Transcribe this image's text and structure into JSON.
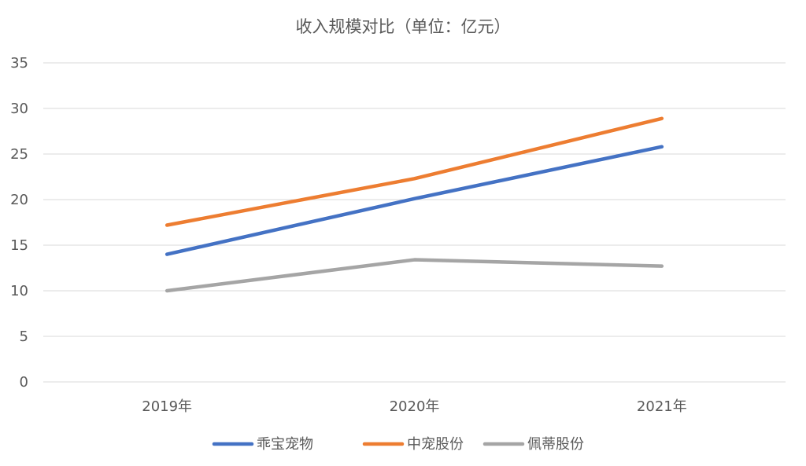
{
  "chart_data": {
    "type": "line",
    "title": "收入规模对比（单位：亿元）",
    "categories": [
      "2019年",
      "2020年",
      "2021年"
    ],
    "series": [
      {
        "name": "乖宝宠物",
        "color": "#4472C4",
        "values": [
          14.0,
          20.1,
          25.8
        ]
      },
      {
        "name": "中宠股份",
        "color": "#ED7D31",
        "values": [
          17.2,
          22.3,
          28.9
        ]
      },
      {
        "name": "佩蒂股份",
        "color": "#A5A5A5",
        "values": [
          10.0,
          13.4,
          12.7
        ]
      }
    ],
    "ylim": [
      0,
      35
    ],
    "yticks": [
      "0",
      "5",
      "10",
      "15",
      "20",
      "25",
      "30",
      "35"
    ],
    "grid": true,
    "legend_position": "bottom",
    "grid_color": "#D9D9D9"
  }
}
